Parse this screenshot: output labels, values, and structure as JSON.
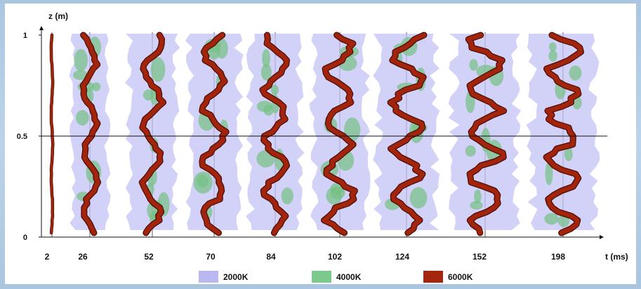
{
  "axes": {
    "z_label": "z (m)",
    "t_label": "t (ms)",
    "z_ticks": [
      "1",
      "0.5",
      "0"
    ]
  },
  "time_labels": [
    "2",
    "26",
    "52",
    "70",
    "84",
    "102",
    "124",
    "152",
    "198"
  ],
  "legend": [
    {
      "label": "2000K",
      "color": "#b9b8f0"
    },
    {
      "label": "4000K",
      "color": "#7cc98e"
    },
    {
      "label": "6000K",
      "color": "#a5250f"
    }
  ],
  "colors": {
    "frame_background": "#a9c6e0",
    "isosurface_2000K": "#c3c2f4",
    "isosurface_4000K": "#74c283",
    "isosurface_6000K": "#a3240d"
  }
}
